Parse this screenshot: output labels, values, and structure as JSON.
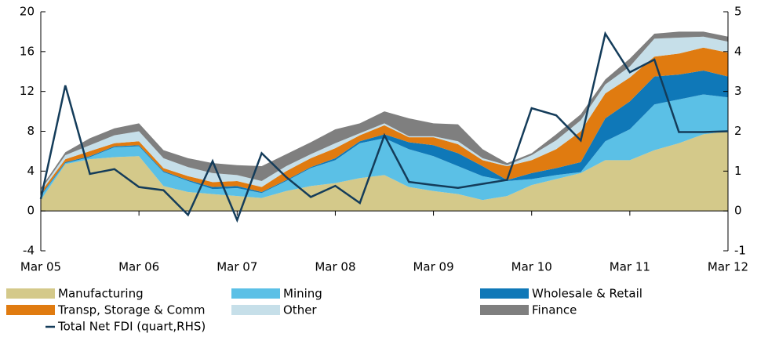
{
  "chart_data": {
    "type": "area",
    "categories": [
      "Mar 05",
      null,
      null,
      null,
      "Mar 06",
      null,
      null,
      null,
      "Mar 07",
      null,
      null,
      null,
      "Mar 08",
      null,
      null,
      null,
      "Mar 09",
      null,
      null,
      null,
      "Mar 10",
      null,
      null,
      null,
      "Mar 11",
      null,
      null,
      null,
      "Mar 12"
    ],
    "ylim": [
      -4,
      20
    ],
    "yticks": [
      -4,
      0,
      4,
      8,
      12,
      16,
      20
    ],
    "y2lim": [
      -1,
      5
    ],
    "y2ticks": [
      -1,
      0,
      1,
      2,
      3,
      4,
      5
    ],
    "series": [
      {
        "name": "Manufacturing",
        "color": "#d4c98a",
        "values": [
          1.1,
          4.7,
          5.2,
          5.4,
          5.5,
          2.5,
          1.9,
          1.7,
          1.5,
          1.3,
          2.0,
          2.5,
          2.8,
          3.3,
          3.6,
          2.4,
          2.0,
          1.7,
          1.1,
          1.5,
          2.6,
          3.2,
          3.8,
          5.1,
          5.1,
          6.1,
          6.8,
          7.7,
          8.0
        ]
      },
      {
        "name": "Mining",
        "color": "#5bc0e6",
        "values": [
          0.4,
          0.1,
          0.2,
          1.0,
          1.0,
          1.4,
          1.1,
          0.5,
          0.8,
          0.5,
          1.0,
          1.8,
          2.3,
          3.5,
          3.7,
          3.8,
          3.5,
          2.8,
          2.4,
          1.5,
          0.6,
          0.4,
          0.1,
          1.9,
          3.1,
          4.6,
          4.4,
          4.0,
          3.4
        ]
      },
      {
        "name": "Wholesale & Retail",
        "color": "#0f78b8",
        "values": [
          0.1,
          0.1,
          0.1,
          0.1,
          0.1,
          0.1,
          0.1,
          0.2,
          0.2,
          0.1,
          0.1,
          0.1,
          0.2,
          0.2,
          0.4,
          0.7,
          1.1,
          1.3,
          1.0,
          0.1,
          0.6,
          0.7,
          1.0,
          2.3,
          2.8,
          2.8,
          2.5,
          2.4,
          2.1
        ]
      },
      {
        "name": "Transp, Storage & Comm",
        "color": "#e07b10",
        "values": [
          0.3,
          0.3,
          0.5,
          0.3,
          0.4,
          0.3,
          0.4,
          0.5,
          0.5,
          0.5,
          0.9,
          0.9,
          1.0,
          0.6,
          0.9,
          0.5,
          0.8,
          0.9,
          0.6,
          1.4,
          1.3,
          1.9,
          3.1,
          2.5,
          2.4,
          2.0,
          2.1,
          2.3,
          2.4
        ]
      },
      {
        "name": "Other",
        "color": "#c6dfe9",
        "values": [
          0.2,
          0.4,
          0.6,
          0.8,
          1.0,
          1.0,
          0.9,
          0.9,
          0.6,
          0.6,
          0.5,
          0.4,
          0.5,
          0.2,
          0.2,
          0.1,
          0.1,
          0.3,
          0.2,
          0.1,
          0.5,
          0.9,
          1.1,
          0.9,
          1.1,
          1.8,
          1.6,
          1.1,
          1.1
        ]
      },
      {
        "name": "Finance",
        "color": "#7f7f7f",
        "values": [
          0.2,
          0.3,
          0.7,
          0.7,
          0.8,
          0.8,
          0.9,
          1.0,
          1.0,
          1.5,
          1.2,
          1.2,
          1.4,
          1.0,
          1.2,
          1.8,
          1.3,
          1.7,
          0.9,
          0.2,
          0.2,
          0.6,
          0.6,
          0.5,
          0.8,
          0.5,
          0.6,
          0.5,
          0.5
        ]
      },
      {
        "name": "Total Net FDI (quart,RHS)",
        "color": "#143c5a",
        "type": "line",
        "axis": "y2",
        "values": [
          0.3,
          3.15,
          0.93,
          1.05,
          0.6,
          0.52,
          -0.1,
          1.25,
          -0.23,
          1.45,
          0.85,
          0.35,
          0.63,
          0.2,
          1.9,
          0.73,
          0.65,
          0.58,
          0.68,
          0.78,
          2.58,
          2.4,
          1.77,
          4.45,
          3.48,
          3.8,
          1.98,
          1.98,
          2.0
        ]
      }
    ]
  }
}
